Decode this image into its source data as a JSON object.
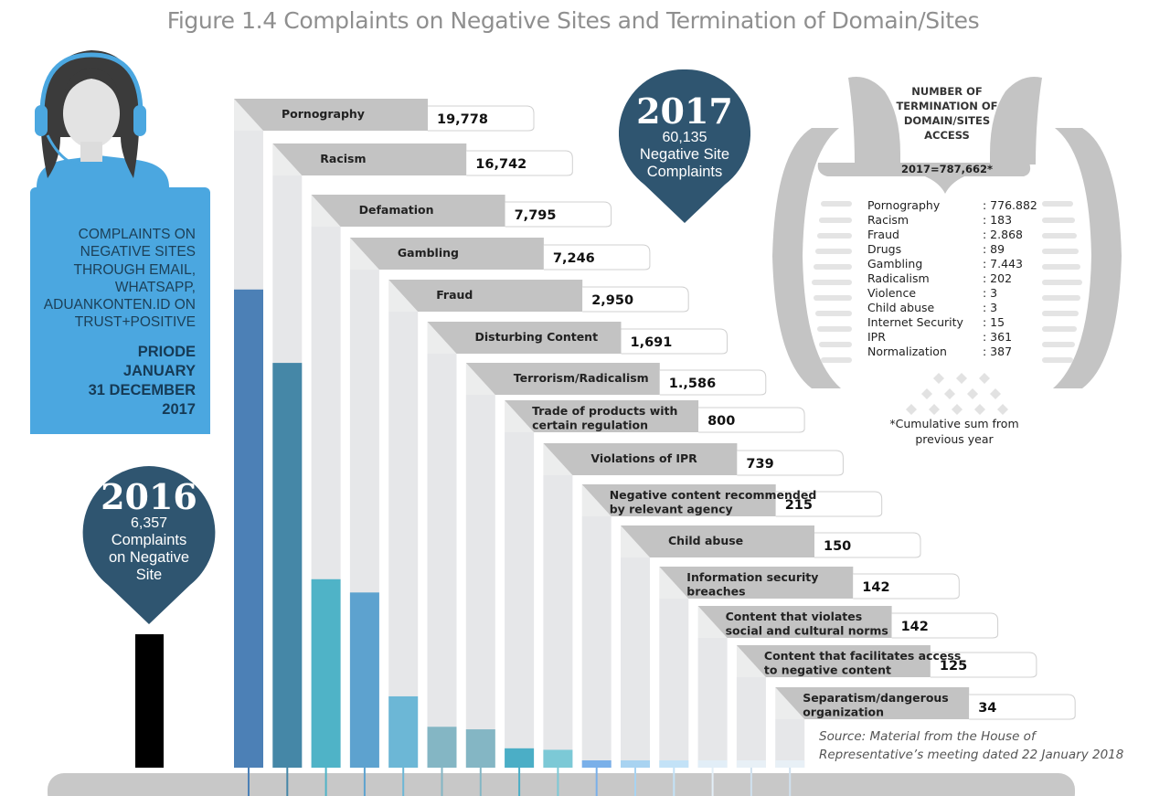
{
  "title": "Figure 1.4 Complaints on Negative Sites and Termination of Domain/Sites",
  "info_card": {
    "text": "COMPLAINTS ON NEGATIVE SITES THROUGH EMAIL, WHATSAPP, ADUANKONTEN.ID ON TRUST+POSITIVE",
    "period": [
      "PRIODE",
      "JANUARY",
      "31 DECEMBER",
      "2017"
    ]
  },
  "pin_2016": {
    "year": "2016",
    "count": "6,357",
    "desc_1": "Complaints",
    "desc_2": "on Negative",
    "desc_3": "Site"
  },
  "pin_2017": {
    "year": "2017",
    "count": "60,135",
    "desc_1": "Negative Site",
    "desc_2": "Complaints"
  },
  "chart_data": {
    "type": "bar",
    "title": "Figure 1.4 Complaints on Negative Sites and Termination of Domain/Sites",
    "categories": [
      [
        "Pornography"
      ],
      [
        "Racism"
      ],
      [
        "Defamation"
      ],
      [
        "Gambling"
      ],
      [
        "Fraud"
      ],
      [
        "Disturbing Content"
      ],
      [
        "Terrorism/Radicalism"
      ],
      [
        "Trade of products with",
        "certain regulation"
      ],
      [
        "Violations of IPR"
      ],
      [
        "Negative content recommended",
        "by relevant agency"
      ],
      [
        "Child abuse"
      ],
      [
        "Information security",
        "breaches"
      ],
      [
        "Content that violates",
        "social and cultural norms"
      ],
      [
        "Content that facilitates access",
        "to negative content"
      ],
      [
        "Separatism/dangerous",
        "organization"
      ]
    ],
    "values": [
      19778,
      16742,
      7795,
      7246,
      2950,
      1691,
      1586,
      800,
      739,
      215,
      150,
      142,
      142,
      125,
      34
    ],
    "value_labels": [
      "19,778",
      "16,742",
      "7,795",
      "7,246",
      "2,950",
      "1,691",
      "1.,586",
      "800",
      "739",
      "215",
      "150",
      "142",
      "142",
      "125",
      "34"
    ],
    "colors": [
      "#4c80b6",
      "#4587a7",
      "#4fb3c7",
      "#5da2cf",
      "#6cb7d6",
      "#84b6c4",
      "#84b6c4",
      "#4baec6",
      "#7cc9d6",
      "#7ab0e9",
      "#a8d3f1",
      "#c3e2f7",
      "#e2eef7",
      "#e8f0f6",
      "#e8f0f6"
    ]
  },
  "termination": {
    "title": "NUMBER OF TERMINATION OF DOMAIN/SITES ACCESS",
    "total": "2017=787,662*",
    "items": [
      {
        "name": "Pornography",
        "value": ": 776.882"
      },
      {
        "name": "Racism",
        "value": ": 183"
      },
      {
        "name": "Fraud",
        "value": ": 2.868"
      },
      {
        "name": "Drugs",
        "value": ": 89"
      },
      {
        "name": "Gambling",
        "value": ": 7.443"
      },
      {
        "name": "Radicalism",
        "value": ": 202"
      },
      {
        "name": "Violence",
        "value": ": 3"
      },
      {
        "name": "Child abuse",
        "value": ": 3"
      },
      {
        "name": "Internet Security",
        "value": ": 15"
      },
      {
        "name": "IPR",
        "value": ": 361"
      },
      {
        "name": "Normalization",
        "value": ": 387"
      }
    ],
    "note": "*Cumulative sum from previous year"
  },
  "source": "Source: Material from the House of Representative’s meeting dated 22 January 2018"
}
